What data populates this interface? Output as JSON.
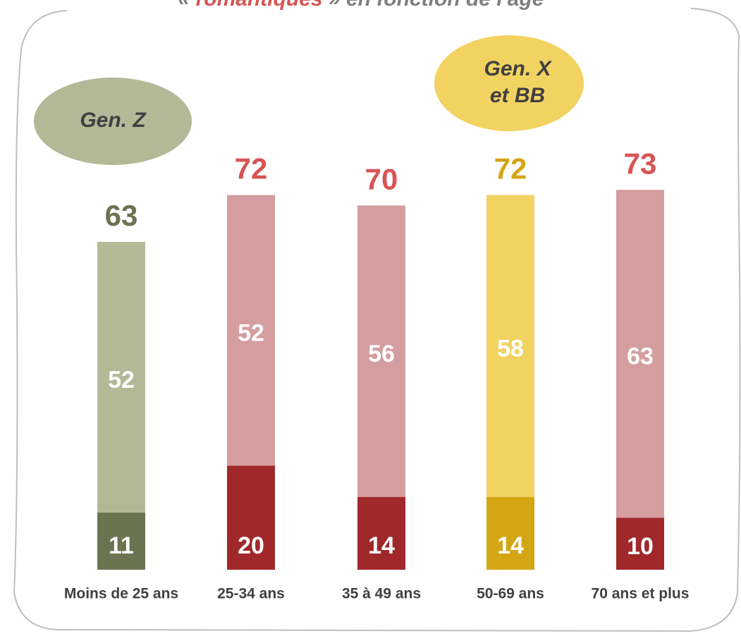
{
  "chart_data": {
    "type": "stacked_bar",
    "title": {
      "open": "«",
      "highlight": "romantiques",
      "rest": "» en fonction de l'âge"
    },
    "annotations": [
      {
        "lines": [
          "Gen. Z"
        ],
        "color": "#b3b896",
        "category": 0
      },
      {
        "lines": [
          "Gen. X",
          "et BB"
        ],
        "color": "#f2d361",
        "category": 3
      }
    ],
    "categories": [
      "Moins de 25 ans",
      "25-34 ans",
      "35 à 49 ans",
      "50-69 ans",
      "70 ans et plus"
    ],
    "series": [
      {
        "values": [
          11,
          20,
          14,
          14,
          10
        ],
        "colors": [
          "#6b7350",
          "#a0282a",
          "#a0282a",
          "#d4a614",
          "#a0282a"
        ]
      },
      {
        "values": [
          52,
          52,
          56,
          58,
          63
        ],
        "colors": [
          "#b3b896",
          "#d49d9f",
          "#d49d9f",
          "#f2d361",
          "#d49d9f"
        ]
      }
    ],
    "totals": [
      63,
      72,
      70,
      72,
      73
    ],
    "total_colors": [
      "#6b7350",
      "#d75454",
      "#d75454",
      "#d4a614",
      "#d75454"
    ]
  }
}
